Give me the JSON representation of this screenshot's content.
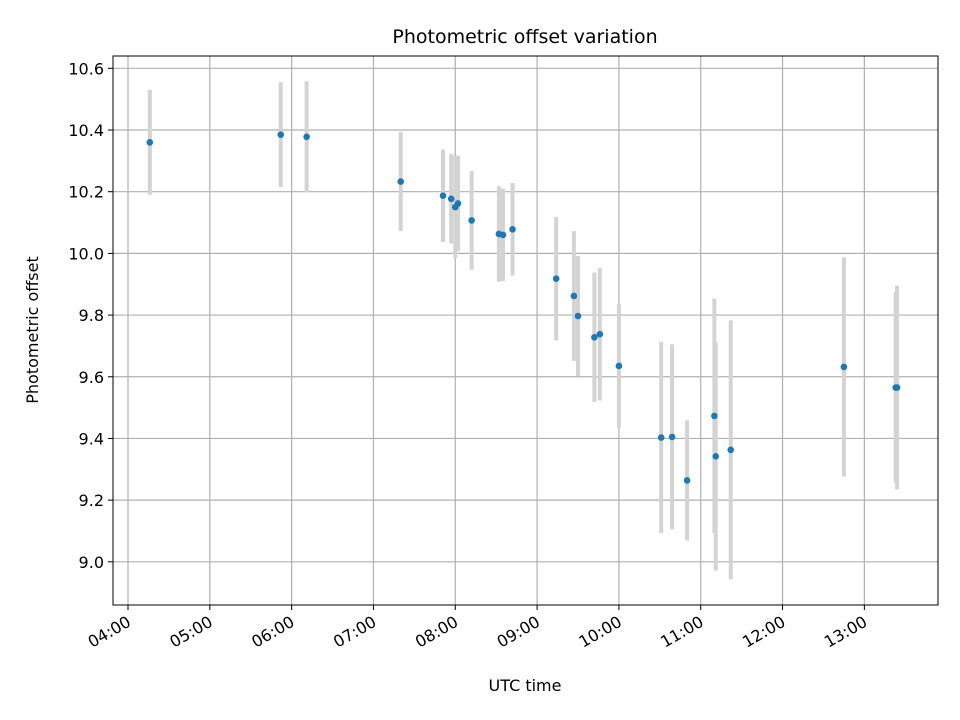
{
  "chart_data": {
    "type": "scatter",
    "title": "Photometric offset variation",
    "xlabel": "UTC time",
    "ylabel": "Photometric offset",
    "xlim": [
      "03:49",
      "13:54"
    ],
    "ylim": [
      8.86,
      10.64
    ],
    "x_ticks": [
      "04:00",
      "05:00",
      "06:00",
      "07:00",
      "08:00",
      "09:00",
      "10:00",
      "11:00",
      "12:00",
      "13:00"
    ],
    "y_ticks": [
      9.0,
      9.2,
      9.4,
      9.6,
      9.8,
      10.0,
      10.2,
      10.4,
      10.6
    ],
    "y_tick_labels": [
      "9.0",
      "9.2",
      "9.4",
      "9.6",
      "9.8",
      "10.0",
      "10.2",
      "10.4",
      "10.6"
    ],
    "grid": true,
    "legend": "none",
    "colors": {
      "points": "#1f77b4",
      "errorbars": "#d3d3d3",
      "grid": "#b0b0b0"
    },
    "series": [
      {
        "points": [
          {
            "x": "04:16",
            "y": 10.36,
            "err": 0.17
          },
          {
            "x": "05:52",
            "y": 10.385,
            "err": 0.17
          },
          {
            "x": "06:11",
            "y": 10.378,
            "err": 0.18
          },
          {
            "x": "07:20",
            "y": 10.233,
            "err": 0.16
          },
          {
            "x": "07:51",
            "y": 10.187,
            "err": 0.15
          },
          {
            "x": "07:57",
            "y": 10.177,
            "err": 0.145
          },
          {
            "x": "08:00",
            "y": 10.15,
            "err": 0.165
          },
          {
            "x": "08:02",
            "y": 10.162,
            "err": 0.155
          },
          {
            "x": "08:12",
            "y": 10.107,
            "err": 0.16
          },
          {
            "x": "08:32",
            "y": 10.063,
            "err": 0.155
          },
          {
            "x": "08:35",
            "y": 10.06,
            "err": 0.15
          },
          {
            "x": "08:42",
            "y": 10.078,
            "err": 0.15
          },
          {
            "x": "09:14",
            "y": 9.918,
            "err": 0.2
          },
          {
            "x": "09:27",
            "y": 9.862,
            "err": 0.21
          },
          {
            "x": "09:30",
            "y": 9.797,
            "err": 0.195
          },
          {
            "x": "09:42",
            "y": 9.728,
            "err": 0.21
          },
          {
            "x": "09:46",
            "y": 9.738,
            "err": 0.215
          },
          {
            "x": "10:00",
            "y": 9.635,
            "err": 0.2
          },
          {
            "x": "10:31",
            "y": 9.403,
            "err": 0.31
          },
          {
            "x": "10:39",
            "y": 9.405,
            "err": 0.3
          },
          {
            "x": "10:50",
            "y": 9.264,
            "err": 0.195
          },
          {
            "x": "11:10",
            "y": 9.473,
            "err": 0.38
          },
          {
            "x": "11:11",
            "y": 9.342,
            "err": 0.37
          },
          {
            "x": "11:22",
            "y": 9.363,
            "err": 0.42
          },
          {
            "x": "12:45",
            "y": 9.632,
            "err": 0.355
          },
          {
            "x": "13:23",
            "y": 9.565,
            "err": 0.31
          },
          {
            "x": "13:24",
            "y": 9.565,
            "err": 0.33
          }
        ]
      }
    ]
  }
}
